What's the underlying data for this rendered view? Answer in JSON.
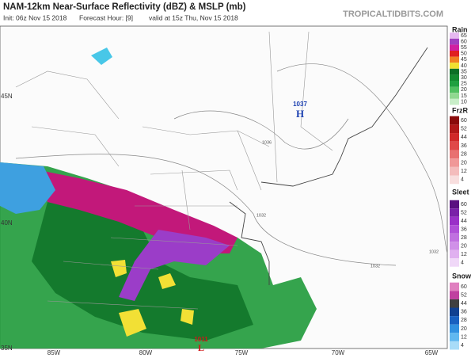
{
  "header": {
    "title": "NAM-12km Near-Surface Reflectivity (dBZ) & MSLP (mb)",
    "init": "Init: 06z Nov 15 2018",
    "forecast": "Forecast Hour: [9]",
    "valid": "valid at 15z Thu, Nov 15 2018",
    "site": "TROPICALTIDBITS.COM"
  },
  "map": {
    "lat_labels": [
      "45N",
      "40N",
      "35N"
    ],
    "lon_labels": [
      "85W",
      "80W",
      "75W",
      "70W",
      "65W"
    ],
    "isobar_labels": [
      "1036",
      "1032",
      "1032",
      "1032"
    ],
    "high": {
      "value": "1037",
      "symbol": "H"
    },
    "low": {
      "value": "1011",
      "symbol": "L"
    }
  },
  "legend": [
    {
      "title": "Rain",
      "ticks": [
        "65",
        "60",
        "55",
        "50",
        "45",
        "40",
        "35",
        "30",
        "25",
        "20",
        "15",
        "10"
      ]
    },
    {
      "title": "FrzR",
      "ticks": [
        "60",
        "52",
        "44",
        "36",
        "28",
        "20",
        "12",
        "4"
      ]
    },
    {
      "title": "Sleet",
      "ticks": [
        "60",
        "52",
        "44",
        "36",
        "28",
        "20",
        "12",
        "4"
      ]
    },
    {
      "title": "Snow",
      "ticks": [
        "60",
        "52",
        "44",
        "36",
        "28",
        "20",
        "12",
        "4"
      ]
    }
  ]
}
